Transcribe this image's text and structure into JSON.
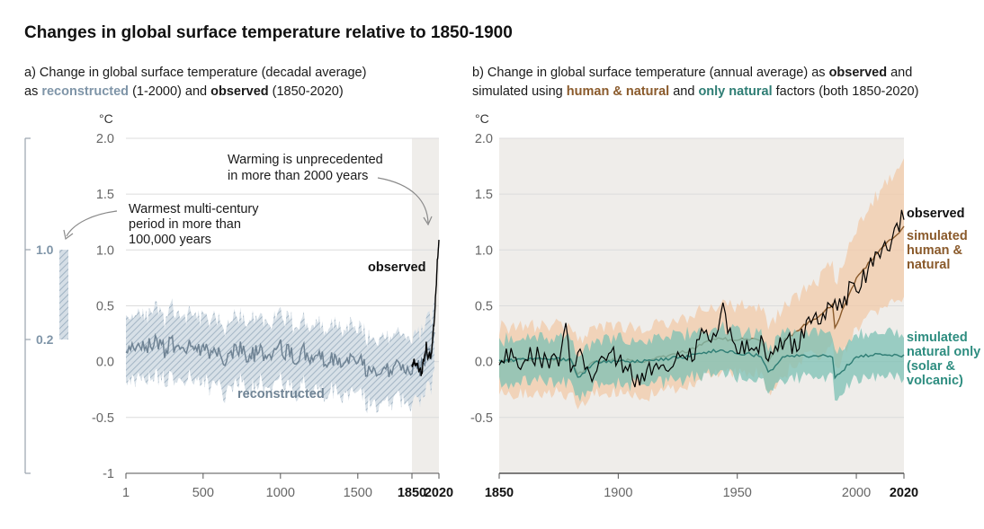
{
  "title": "Changes in global surface temperature relative to 1850-1900",
  "panel_a": {
    "sub_line1": "a) Change in global surface temperature (decadal average)",
    "sub_line2_pre": "as ",
    "sub_line2_reconstructed": "reconstructed",
    "sub_line2_mid": " (1-2000) and ",
    "sub_line2_observed": "observed",
    "sub_line2_post": " (1850-2020)",
    "unit": "°C",
    "annotation_unprecedented": [
      "Warming is unprecedented",
      "in more than 2000 years"
    ],
    "annotation_warmest": [
      "Warmest multi-century",
      "period in more than",
      "100,000 years"
    ],
    "label_observed": "observed",
    "label_reconstructed": "reconstructed",
    "range_bar_top": "1.0",
    "range_bar_bottom": "0.2"
  },
  "panel_b": {
    "sub_line1_pre": "b) Change in global surface temperature (annual average) as ",
    "sub_line1_observed": "observed",
    "sub_line1_post": " and",
    "sub_line2_pre": "simulated using ",
    "sub_line2_human": "human & natural",
    "sub_line2_mid": " and ",
    "sub_line2_natural": "only natural",
    "sub_line2_post": " factors (both 1850-2020)",
    "unit": "°C",
    "label_observed": "observed",
    "label_human": [
      "simulated",
      "human &",
      "natural"
    ],
    "label_natural": [
      "simulated",
      "natural only",
      "(solar &",
      "volcanic)"
    ]
  },
  "colors": {
    "reconstructed": "#6f8394",
    "reconstructed_band": "#b9c7d3",
    "observed": "#000000",
    "human": "#8a5a2b",
    "human_band": "#f2c9a8",
    "natural": "#2e7d74",
    "natural_band": "#7cc0b4",
    "shade": "#efedea"
  },
  "chart_data": [
    {
      "type": "line",
      "title": "a) Change in global surface temperature (decadal average)",
      "xlabel": "",
      "ylabel": "°C",
      "xlim": [
        1,
        2020
      ],
      "ylim": [
        -1,
        2
      ],
      "x_ticks": [
        "1",
        "500",
        "1000",
        "1500",
        "1850",
        "2020"
      ],
      "y_ticks": [
        "2.0",
        "1.5",
        "1.0",
        "0.5",
        "0.0",
        "-0.5",
        "-1"
      ],
      "series": [
        {
          "name": "reconstructed",
          "x": [
            1,
            50,
            100,
            150,
            200,
            250,
            300,
            350,
            400,
            450,
            500,
            550,
            600,
            650,
            700,
            750,
            800,
            850,
            900,
            950,
            1000,
            1050,
            1100,
            1150,
            1200,
            1250,
            1300,
            1350,
            1400,
            1450,
            1500,
            1550,
            1600,
            1650,
            1700,
            1750,
            1800,
            1850,
            1880,
            1900,
            1930,
            1950,
            1970,
            1990,
            2000
          ],
          "y": [
            0.05,
            0.12,
            0.18,
            0.14,
            0.2,
            0.1,
            0.16,
            0.08,
            0.14,
            0.18,
            0.1,
            0.06,
            0.1,
            0.0,
            0.08,
            0.12,
            0.04,
            0.1,
            0.08,
            0.06,
            0.12,
            0.08,
            0.04,
            0.1,
            0.0,
            0.06,
            -0.02,
            0.04,
            -0.04,
            0.0,
            0.02,
            -0.06,
            -0.08,
            -0.1,
            -0.06,
            -0.02,
            -0.1,
            -0.05,
            -0.04,
            -0.08,
            0.0,
            0.1,
            0.04,
            0.3,
            0.6
          ],
          "band_width": 0.25
        },
        {
          "name": "observed",
          "x": [
            1850,
            1860,
            1870,
            1880,
            1890,
            1900,
            1910,
            1920,
            1930,
            1940,
            1950,
            1960,
            1970,
            1980,
            1990,
            2000,
            2010,
            2020
          ],
          "y": [
            -0.05,
            0.0,
            -0.02,
            0.0,
            -0.08,
            -0.05,
            -0.12,
            -0.02,
            0.05,
            0.15,
            0.05,
            0.06,
            0.04,
            0.2,
            0.38,
            0.6,
            0.9,
            1.09
          ]
        }
      ]
    },
    {
      "type": "line",
      "title": "b) Change in global surface temperature (annual average)",
      "xlabel": "",
      "ylabel": "°C",
      "xlim": [
        1850,
        2020
      ],
      "ylim": [
        -1,
        2
      ],
      "x_ticks": [
        "1850",
        "1900",
        "1950",
        "2000",
        "2020"
      ],
      "y_ticks": [
        "2.0",
        "1.5",
        "1.0",
        "0.5",
        "0.0",
        "-0.5"
      ],
      "series": [
        {
          "name": "observed",
          "x": [
            1850,
            1855,
            1860,
            1865,
            1870,
            1875,
            1878,
            1880,
            1885,
            1890,
            1895,
            1900,
            1905,
            1910,
            1915,
            1920,
            1925,
            1930,
            1935,
            1940,
            1944,
            1950,
            1955,
            1960,
            1965,
            1970,
            1975,
            1980,
            1985,
            1990,
            1995,
            1998,
            2000,
            2005,
            2010,
            2015,
            2016,
            2020
          ],
          "y": [
            -0.05,
            0.08,
            0.0,
            0.05,
            -0.02,
            0.05,
            0.3,
            -0.05,
            0.05,
            -0.12,
            0.02,
            0.05,
            -0.1,
            -0.2,
            0.0,
            -0.02,
            0.1,
            0.05,
            0.2,
            0.28,
            0.45,
            0.08,
            0.1,
            0.18,
            0.05,
            0.18,
            0.12,
            0.35,
            0.38,
            0.55,
            0.5,
            0.72,
            0.6,
            0.85,
            0.92,
            1.1,
            1.25,
            1.27
          ]
        },
        {
          "name": "simulated human & natural",
          "x": [
            1850,
            1860,
            1870,
            1880,
            1883,
            1890,
            1900,
            1910,
            1920,
            1930,
            1940,
            1950,
            1960,
            1963,
            1970,
            1980,
            1990,
            1991,
            2000,
            2010,
            2020
          ],
          "y": [
            0.0,
            0.02,
            0.02,
            0.02,
            -0.12,
            0.0,
            0.02,
            0.0,
            0.05,
            0.1,
            0.2,
            0.2,
            0.2,
            0.0,
            0.2,
            0.35,
            0.5,
            0.3,
            0.75,
            1.0,
            1.2
          ],
          "band_width": 0.3
        },
        {
          "name": "simulated natural only (solar & volcanic)",
          "x": [
            1850,
            1860,
            1870,
            1880,
            1883,
            1890,
            1900,
            1910,
            1920,
            1930,
            1940,
            1950,
            1960,
            1963,
            1970,
            1980,
            1990,
            1991,
            2000,
            2010,
            2020
          ],
          "y": [
            0.0,
            0.02,
            0.02,
            0.02,
            -0.15,
            0.0,
            0.0,
            0.0,
            0.02,
            0.05,
            0.1,
            0.08,
            0.05,
            -0.1,
            0.05,
            0.05,
            0.05,
            -0.15,
            0.05,
            0.06,
            0.05
          ],
          "band_width": 0.2
        }
      ]
    }
  ]
}
